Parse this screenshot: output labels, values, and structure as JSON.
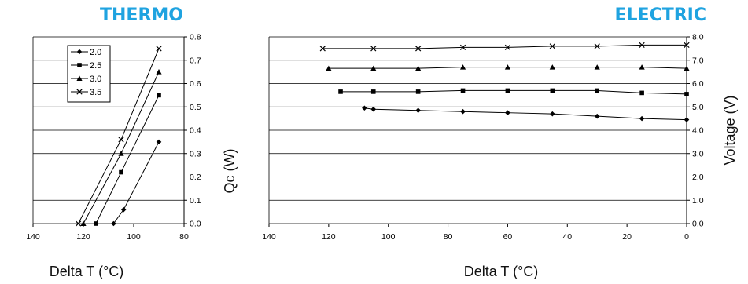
{
  "colors": {
    "title": "#1fa3e0",
    "line": "#000000",
    "grid": "#000000"
  },
  "chart_data": [
    {
      "name": "thermo",
      "type": "line",
      "title": "THERMO",
      "xlabel": "Delta T (°C)",
      "ylabel": "Qc (W)",
      "xlim": [
        140,
        80
      ],
      "ylim": [
        0,
        0.8
      ],
      "xticks": [
        140,
        120,
        100,
        80
      ],
      "xtick_labels": [
        "140",
        "120",
        "100",
        "80"
      ],
      "yticks": [
        0,
        0.1,
        0.2,
        0.3,
        0.4,
        0.5,
        0.6,
        0.7,
        0.8
      ],
      "ytick_labels": [
        "0.0",
        "0.1",
        "0.2",
        "0.3",
        "0.4",
        "0.5",
        "0.6",
        "0.7",
        "0.8"
      ],
      "y_axis_side": "right",
      "grid": "horizontal",
      "legend": "top-left",
      "series": [
        {
          "name": "2.0",
          "marker": "diamond",
          "x": [
            108,
            104,
            90
          ],
          "y": [
            0,
            0.06,
            0.35
          ]
        },
        {
          "name": "2.5",
          "marker": "square",
          "x": [
            115,
            105,
            90
          ],
          "y": [
            0,
            0.22,
            0.55
          ]
        },
        {
          "name": "3.0",
          "marker": "triangle",
          "x": [
            120,
            105,
            90
          ],
          "y": [
            0,
            0.3,
            0.65
          ]
        },
        {
          "name": "3.5",
          "marker": "x",
          "x": [
            122,
            105,
            90
          ],
          "y": [
            0,
            0.36,
            0.75
          ]
        }
      ]
    },
    {
      "name": "electric",
      "type": "line",
      "title": "ELECTRIC",
      "xlabel": "Delta T (°C)",
      "ylabel": "Voltage (V)",
      "xlim": [
        140,
        0
      ],
      "ylim": [
        0,
        8
      ],
      "xticks": [
        140,
        120,
        100,
        80,
        60,
        40,
        20,
        0
      ],
      "xtick_labels": [
        "140",
        "120",
        "100",
        "80",
        "60",
        "40",
        "20",
        "0"
      ],
      "yticks": [
        0,
        1,
        2,
        3,
        4,
        5,
        6,
        7,
        8
      ],
      "ytick_labels": [
        "0.0",
        "1.0",
        "2.0",
        "3.0",
        "4.0",
        "5.0",
        "6.0",
        "7.0",
        "8.0"
      ],
      "y_axis_side": "right",
      "grid": "horizontal",
      "series": [
        {
          "marker": "diamond",
          "x": [
            108,
            105,
            90,
            75,
            60,
            45,
            30,
            15,
            0
          ],
          "y": [
            4.95,
            4.9,
            4.85,
            4.8,
            4.75,
            4.7,
            4.6,
            4.5,
            4.45
          ]
        },
        {
          "marker": "square",
          "x": [
            116,
            105,
            90,
            75,
            60,
            45,
            30,
            15,
            0
          ],
          "y": [
            5.65,
            5.65,
            5.65,
            5.7,
            5.7,
            5.7,
            5.7,
            5.6,
            5.55
          ]
        },
        {
          "marker": "triangle",
          "x": [
            120,
            105,
            90,
            75,
            60,
            45,
            30,
            15,
            0
          ],
          "y": [
            6.65,
            6.65,
            6.65,
            6.7,
            6.7,
            6.7,
            6.7,
            6.7,
            6.65
          ]
        },
        {
          "marker": "x",
          "x": [
            122,
            105,
            90,
            75,
            60,
            45,
            30,
            15,
            0
          ],
          "y": [
            7.5,
            7.5,
            7.5,
            7.55,
            7.55,
            7.6,
            7.6,
            7.65,
            7.65
          ]
        }
      ]
    }
  ]
}
